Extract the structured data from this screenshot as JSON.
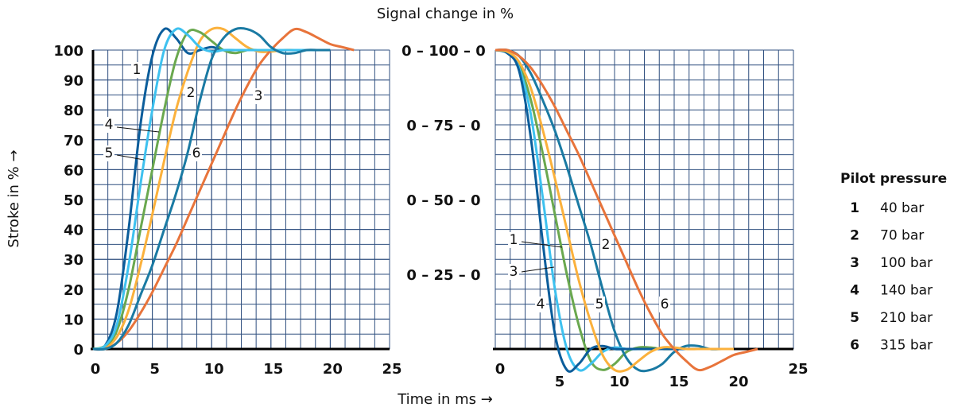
{
  "figure": {
    "title": "Signal change in %",
    "x_label": "Time in ms →",
    "y_label": "Stroke in % →"
  },
  "legend": {
    "title": "Pilot pressure",
    "items": [
      {
        "key": "1",
        "label": "40 bar"
      },
      {
        "key": "2",
        "label": "70 bar"
      },
      {
        "key": "3",
        "label": "100 bar"
      },
      {
        "key": "4",
        "label": "140 bar"
      },
      {
        "key": "5",
        "label": "210 bar"
      },
      {
        "key": "6",
        "label": "315 bar"
      }
    ]
  },
  "chart_data": [
    {
      "type": "line",
      "xlim": [
        0,
        25
      ],
      "ylim": [
        0,
        100
      ],
      "xticks": [
        0,
        5,
        10,
        15,
        20,
        25
      ],
      "yticks": [
        0,
        10,
        20,
        30,
        40,
        50,
        60,
        70,
        80,
        90,
        100
      ],
      "grid": true,
      "x": [
        0,
        1,
        2,
        3,
        4,
        5,
        6,
        7,
        8,
        9,
        10,
        11,
        12,
        13,
        14,
        15,
        16,
        17,
        18,
        19,
        20,
        21,
        22
      ],
      "series": [
        {
          "name": "1",
          "color": "#e8743b",
          "values": [
            0,
            0,
            2,
            6,
            12,
            19,
            27,
            35,
            44,
            53,
            62,
            71,
            80,
            88,
            95,
            100,
            104,
            107,
            106,
            104,
            102,
            101,
            100
          ]
        },
        {
          "name": "2",
          "color": "#1a7aa3",
          "values": [
            0,
            0,
            2,
            8,
            18,
            28,
            40,
            52,
            66,
            83,
            97,
            104,
            107,
            107,
            105,
            101,
            99,
            99,
            100,
            100,
            100,
            null,
            null
          ]
        },
        {
          "name": "3",
          "color": "#fbb13c",
          "values": [
            0,
            0.5,
            4,
            13,
            28,
            45,
            63,
            80,
            93,
            103,
            107,
            107,
            104,
            101,
            99.5,
            99.5,
            100,
            100,
            100,
            100,
            100,
            null,
            null
          ]
        },
        {
          "name": "4",
          "color": "#6aa84f",
          "values": [
            0,
            1,
            6,
            20,
            40,
            60,
            80,
            97,
            106,
            106,
            103,
            100,
            99,
            100,
            100,
            100,
            100,
            100,
            100,
            100,
            100,
            null,
            null
          ]
        },
        {
          "name": "5",
          "color": "#3ec1ef",
          "values": [
            0,
            1,
            8,
            28,
            55,
            80,
            100,
            107,
            105,
            101,
            99.5,
            100,
            100,
            100,
            100,
            100,
            100,
            100,
            100,
            100,
            100,
            null,
            null
          ]
        },
        {
          "name": "6",
          "color": "#0b5d9b",
          "values": [
            0,
            1,
            12,
            40,
            75,
            98,
            107,
            104,
            99,
            100,
            101,
            100,
            100,
            100,
            100,
            100,
            100,
            100,
            100,
            100,
            100,
            null,
            null
          ]
        }
      ]
    },
    {
      "type": "line",
      "xlim": [
        0,
        25
      ],
      "ylim": [
        0,
        100
      ],
      "xticks": [
        0,
        5,
        10,
        15,
        20,
        25
      ],
      "yticks": [
        {
          "value": 25,
          "label": "0 – 25 – 0"
        },
        {
          "value": 50,
          "label": "0 – 50 – 0"
        },
        {
          "value": 75,
          "label": "0 – 75 – 0"
        },
        {
          "value": 100,
          "label": "0 – 100 – 0"
        }
      ],
      "grid": true,
      "x": [
        0,
        1,
        2,
        3,
        4,
        5,
        6,
        7,
        8,
        9,
        10,
        11,
        12,
        13,
        14,
        15,
        16,
        17,
        18,
        19,
        20,
        21,
        22
      ],
      "series": [
        {
          "name": "1",
          "color": "#e8743b",
          "values": [
            100,
            100,
            98,
            94,
            88,
            81,
            73,
            65,
            56,
            47,
            38,
            29,
            20,
            12,
            5,
            0,
            -4,
            -7,
            -6,
            -4,
            -2,
            -1,
            0
          ]
        },
        {
          "name": "2",
          "color": "#1a7aa3",
          "values": [
            100,
            100,
            98,
            92,
            83,
            73,
            61,
            48,
            35,
            20,
            6,
            -3,
            -7,
            -7,
            -5,
            -1,
            1,
            1,
            0,
            0,
            0,
            null,
            null
          ]
        },
        {
          "name": "3",
          "color": "#fbb13c",
          "values": [
            100,
            99.5,
            96,
            87,
            73,
            57,
            40,
            23,
            9,
            -2,
            -7,
            -7,
            -4,
            -1,
            0.5,
            0.5,
            0,
            0,
            0,
            0,
            0,
            null,
            null
          ]
        },
        {
          "name": "4",
          "color": "#6aa84f",
          "values": [
            100,
            99.5,
            95,
            83,
            65,
            45,
            25,
            8,
            -4,
            -7,
            -5,
            -1,
            0.5,
            0.5,
            0,
            0,
            0,
            0,
            0,
            0,
            0,
            null,
            null
          ]
        },
        {
          "name": "5",
          "color": "#3ec1ef",
          "values": [
            100,
            99,
            94,
            78,
            50,
            20,
            0,
            -7,
            -5,
            -1,
            0.5,
            0,
            0,
            0,
            0,
            0,
            0,
            0,
            0,
            0,
            0,
            null,
            null
          ]
        },
        {
          "name": "6",
          "color": "#0b5d9b",
          "values": [
            100,
            99,
            93,
            70,
            35,
            5,
            -7,
            -5,
            0,
            1,
            0,
            0,
            0,
            0,
            0,
            0,
            0,
            0,
            0,
            0,
            0,
            null,
            null
          ]
        }
      ]
    }
  ]
}
